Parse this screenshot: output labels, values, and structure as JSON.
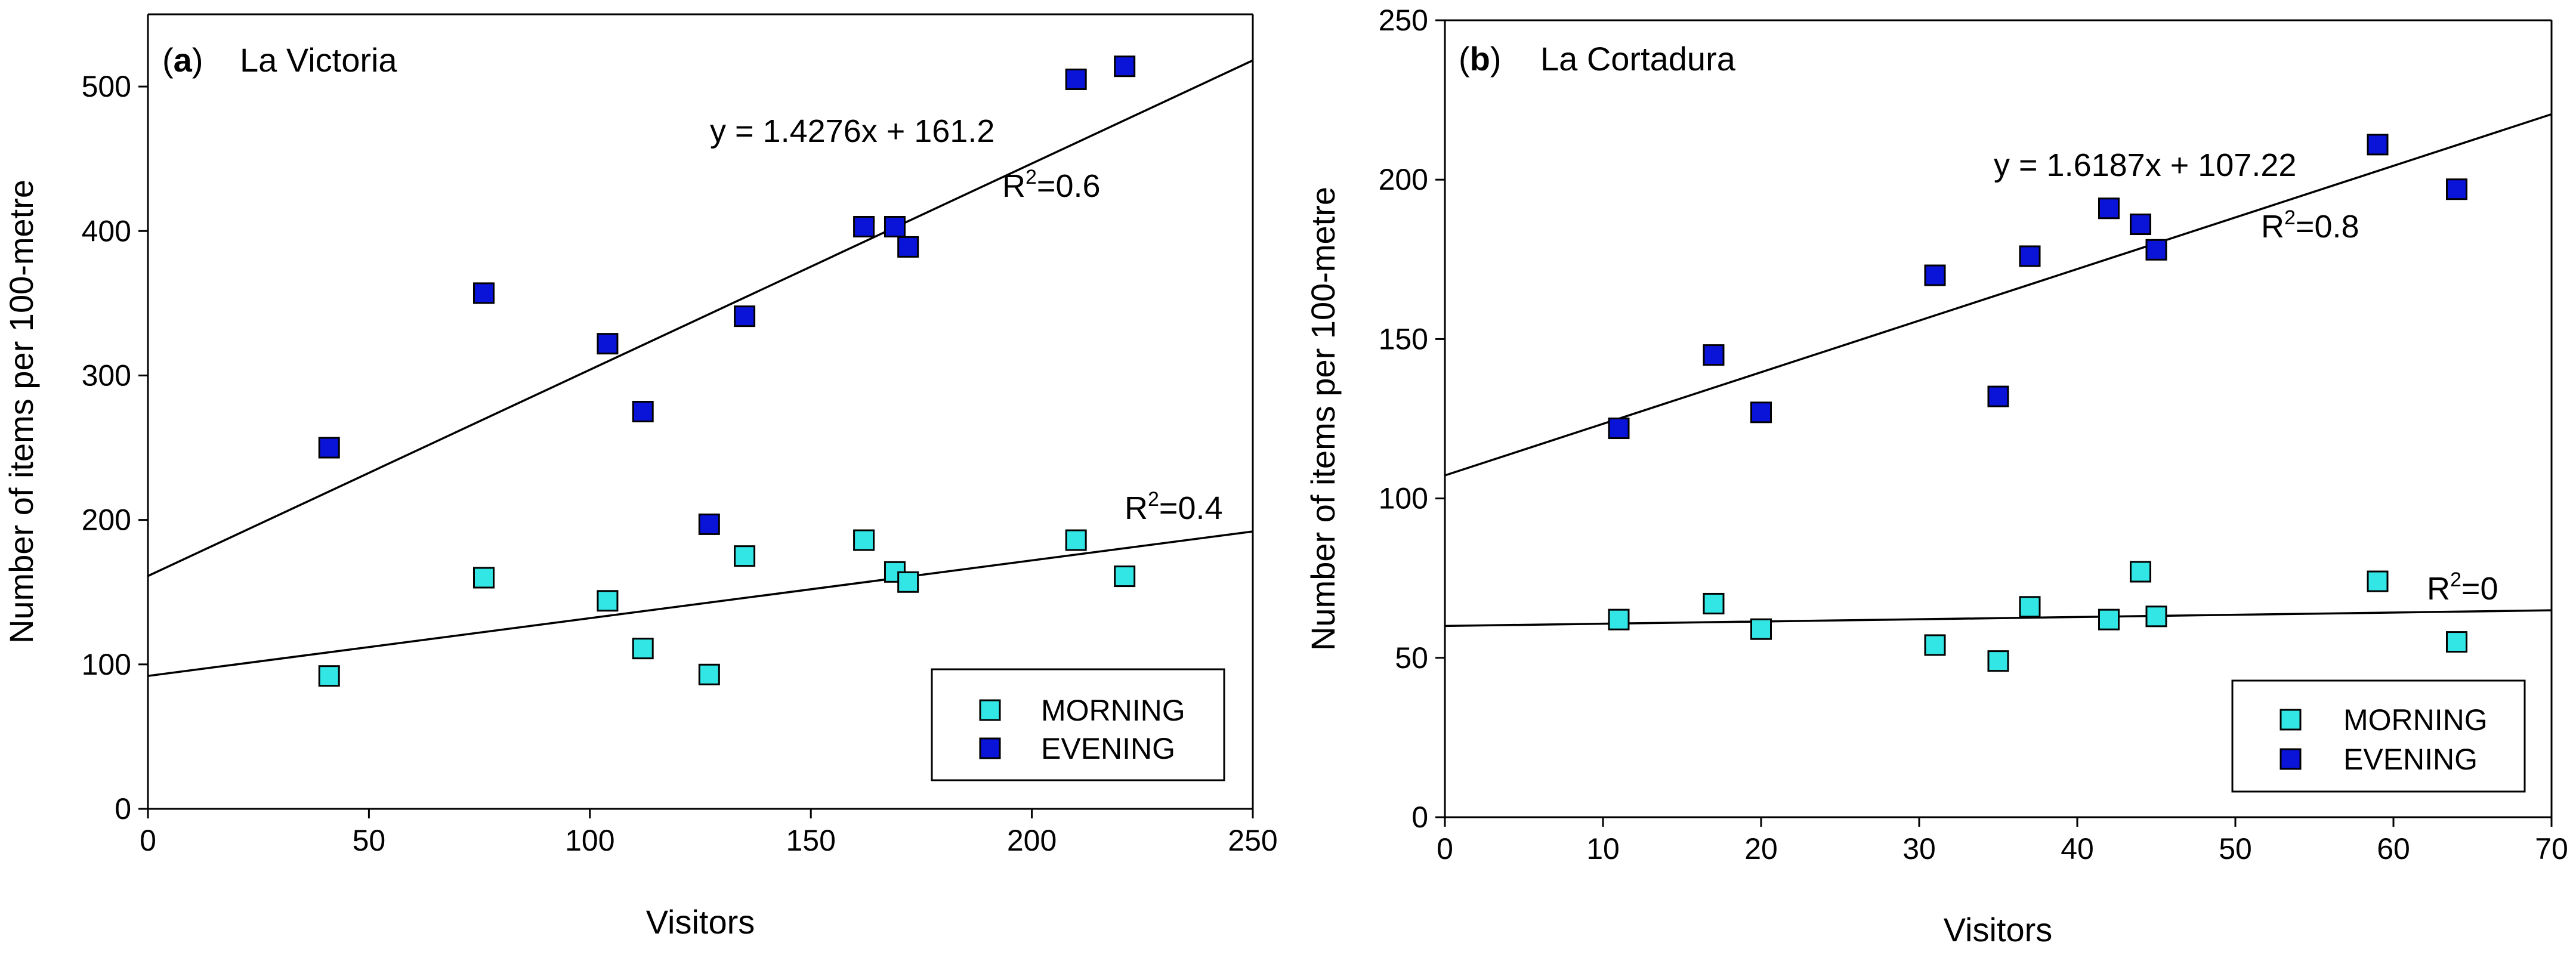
{
  "colors": {
    "morning": "#33E6E6",
    "evening": "#0A14D9",
    "axis": "#000000"
  },
  "chart_data": [
    {
      "type": "scatter",
      "panel_letter": "a",
      "panel_open": "(",
      "panel_close": ")",
      "title": "La Victoria",
      "xlabel": "Visitors",
      "ylabel": "Number of items per 100-metre",
      "xlim": [
        0,
        250
      ],
      "ylim": [
        0,
        550
      ],
      "xticks": [
        0,
        50,
        100,
        150,
        200,
        250
      ],
      "yticks": [
        0,
        100,
        200,
        300,
        400,
        500
      ],
      "legend_position": "bottom-right",
      "series": [
        {
          "name": "MORNING",
          "color_key": "morning",
          "x": [
            41,
            76,
            104,
            112,
            127,
            135,
            162,
            169,
            172,
            210,
            221
          ],
          "y": [
            92,
            160,
            144,
            111,
            93,
            175,
            186,
            164,
            157,
            186,
            161
          ]
        },
        {
          "name": "EVENING",
          "color_key": "evening",
          "x": [
            41,
            76,
            104,
            112,
            127,
            135,
            162,
            169,
            172,
            210,
            221
          ],
          "y": [
            250,
            357,
            322,
            275,
            197,
            341,
            403,
            403,
            389,
            505,
            514
          ]
        }
      ],
      "regressions": [
        {
          "series": "MORNING",
          "slope": 0.4,
          "intercept": 92
        },
        {
          "series": "EVENING",
          "slope": 1.4276,
          "intercept": 161.2
        }
      ],
      "annotations": {
        "evening_equation": "y = 1.4276x + 161.2",
        "evening_r2_prefix": "R",
        "evening_r2_sup": "2",
        "evening_r2_value": "=0.6",
        "morning_r2_prefix": "R",
        "morning_r2_sup": "2",
        "morning_r2_value": "=0.4"
      }
    },
    {
      "type": "scatter",
      "panel_letter": "b",
      "panel_open": "(",
      "panel_close": ")",
      "title": "La Cortadura",
      "xlabel": "Visitors",
      "ylabel": "Number of items per 100-metre",
      "xlim": [
        0,
        70
      ],
      "ylim": [
        0,
        250
      ],
      "xticks": [
        0,
        10,
        20,
        30,
        40,
        50,
        60,
        70
      ],
      "yticks": [
        0,
        50,
        100,
        150,
        200,
        250
      ],
      "legend_position": "bottom-right",
      "series": [
        {
          "name": "MORNING",
          "color_key": "morning",
          "x": [
            11,
            17,
            20,
            31,
            35,
            37,
            42,
            44,
            45,
            59,
            64
          ],
          "y": [
            62,
            67,
            59,
            54,
            49,
            66,
            62,
            77,
            63,
            74,
            55
          ]
        },
        {
          "name": "EVENING",
          "color_key": "evening",
          "x": [
            11,
            17,
            20,
            31,
            35,
            37,
            42,
            44,
            45,
            59,
            64
          ],
          "y": [
            122,
            145,
            127,
            170,
            132,
            176,
            191,
            186,
            178,
            211,
            197
          ]
        }
      ],
      "regressions": [
        {
          "series": "MORNING",
          "slope": 0.07,
          "intercept": 60
        },
        {
          "series": "EVENING",
          "slope": 1.6187,
          "intercept": 107.22
        }
      ],
      "annotations": {
        "evening_equation": "y = 1.6187x + 107.22",
        "evening_r2_prefix": "R",
        "evening_r2_sup": "2",
        "evening_r2_value": "=0.8",
        "morning_r2_prefix": "R",
        "morning_r2_sup": "2",
        "morning_r2_value": "=0"
      }
    }
  ]
}
